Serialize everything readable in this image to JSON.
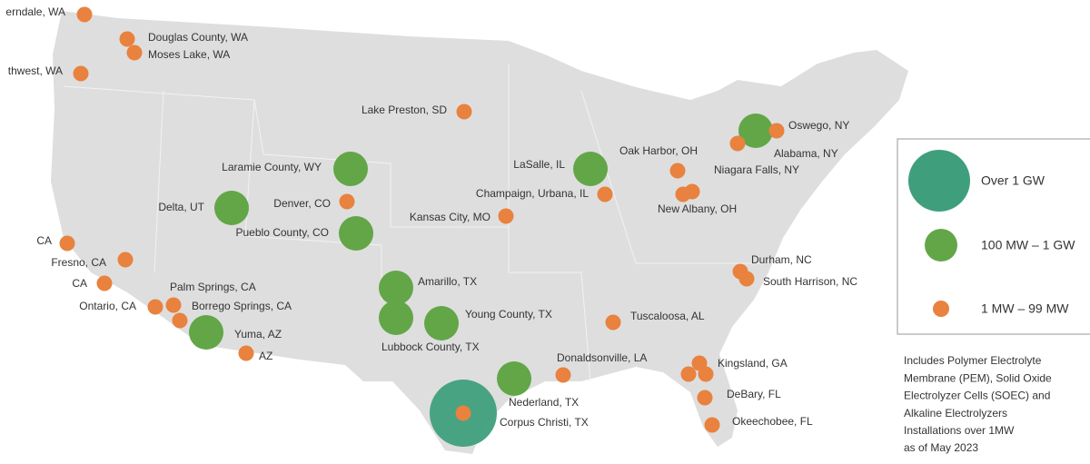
{
  "legend": {
    "items": [
      {
        "label": "Over 1 GW",
        "sites": [
          "Corpus Christi, TX"
        ]
      },
      {
        "label": "100 MW – 1 GW",
        "sites": [
          "Laramie County, WY",
          "Delta, UT",
          "Pueblo County, CO",
          "LaSalle, IL",
          "Oswego, NY",
          "Amarillo, TX",
          "Lubbock County, TX",
          "Young County, TX",
          "Yuma, AZ",
          "Nederland, TX"
        ]
      },
      {
        "label": "1 MW – 99 MW",
        "sites": [
          "erndale, WA",
          "Douglas County, WA",
          "Moses Lake, WA",
          "thwest, WA",
          "Lake Preston, SD",
          "Denver, CO",
          "Champaign, Urbana, IL",
          "Kansas City, MO",
          "Oak Harbor, OH",
          "Niagara Falls, NY",
          "Alabama, NY",
          "New Albany, OH",
          "CA",
          "Fresno, CA",
          "CA",
          "Palm Springs, CA",
          "Ontario, CA",
          "Borrego Springs, CA",
          "AZ",
          "Durham, NC",
          "South Harrison, NC",
          "Tuscaloosa, AL",
          "Donaldsonville, LA",
          "Kingsland, GA",
          "DeBary, FL",
          "Okeechobee, FL"
        ]
      }
    ]
  },
  "note": {
    "lines": [
      "Includes Polymer Electrolyte",
      "Membrane (PEM), Solid Oxide",
      "Electrolyzer Cells (SOEC) and",
      "Alkaline Electrolyzers",
      "Installations over 1MW",
      "as of May 2023"
    ]
  }
}
